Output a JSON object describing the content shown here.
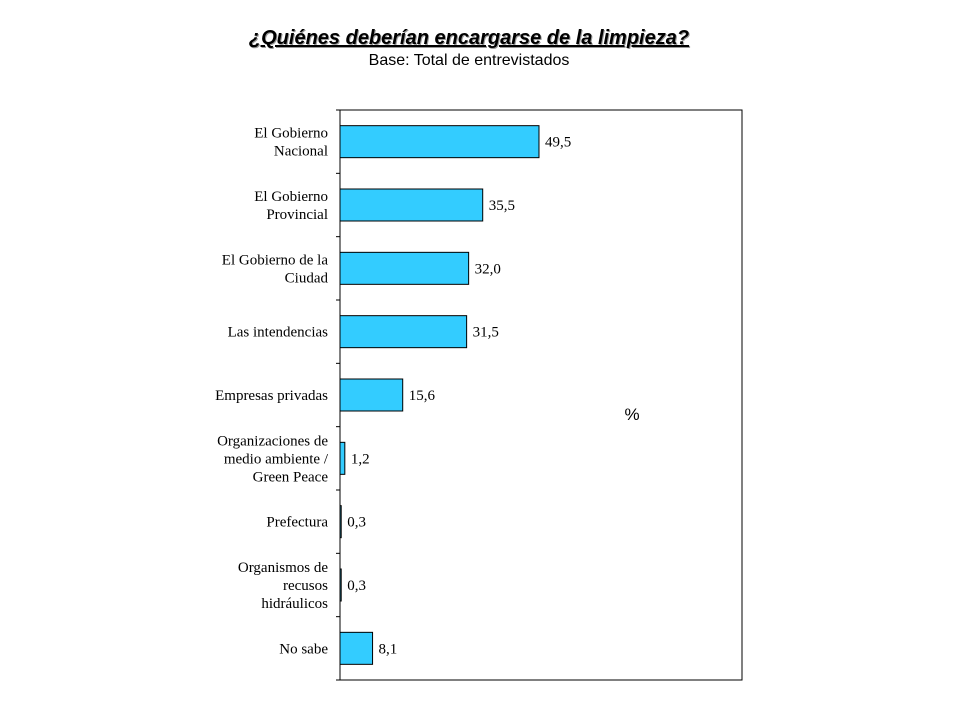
{
  "header": {
    "title": "¿Quiénes deberían encargarse de la limpieza?",
    "subtitle": "Base: Total de entrevistados"
  },
  "chart_data": {
    "type": "bar",
    "orientation": "horizontal",
    "categories": [
      [
        "El Gobierno",
        "Nacional"
      ],
      [
        "El Gobierno",
        "Provincial"
      ],
      [
        "El Gobierno de la",
        "Ciudad"
      ],
      [
        "Las intendencias"
      ],
      [
        "Empresas privadas"
      ],
      [
        "Organizaciones de",
        "medio ambiente /",
        "Green Peace"
      ],
      [
        "Prefectura"
      ],
      [
        "Organismos de",
        "recusos",
        "hidráulicos"
      ],
      [
        "No sabe"
      ]
    ],
    "values": [
      49.5,
      35.5,
      32.0,
      31.5,
      15.6,
      1.2,
      0.3,
      0.3,
      8.1
    ],
    "value_labels": [
      "49,5",
      "35,5",
      "32,0",
      "31,5",
      "15,6",
      "1,2",
      "0,3",
      "0,3",
      "8,1"
    ],
    "unit_label": "%",
    "xlim": [
      0,
      100
    ],
    "bar_color": "#33ccff",
    "grid": false,
    "legend": "none"
  }
}
